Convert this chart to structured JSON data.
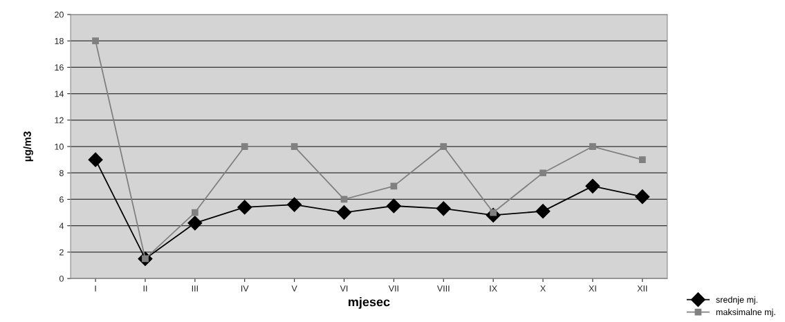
{
  "chart_data": {
    "type": "line",
    "xlabel": "mjesec",
    "ylabel": "µg/m3",
    "categories": [
      "I",
      "II",
      "III",
      "IV",
      "V",
      "VI",
      "VII",
      "VIII",
      "IX",
      "X",
      "XI",
      "XII"
    ],
    "series": [
      {
        "name": "srednje mj.",
        "color": "#000000",
        "marker": "diamond",
        "values": [
          9,
          1.5,
          4.2,
          5.4,
          5.6,
          5.0,
          5.5,
          5.3,
          4.8,
          5.1,
          7.0,
          6.2
        ]
      },
      {
        "name": "maksimalne mj.",
        "color": "#808080",
        "marker": "square",
        "values": [
          18,
          1.5,
          5,
          10,
          10,
          6,
          7,
          10,
          5,
          8,
          10,
          9
        ]
      }
    ],
    "ylim": [
      0,
      20
    ],
    "yticks": [
      0,
      2,
      4,
      6,
      8,
      10,
      12,
      14,
      16,
      18,
      20
    ],
    "grid": "y",
    "legend": "bottom right",
    "line_style": "solid"
  }
}
